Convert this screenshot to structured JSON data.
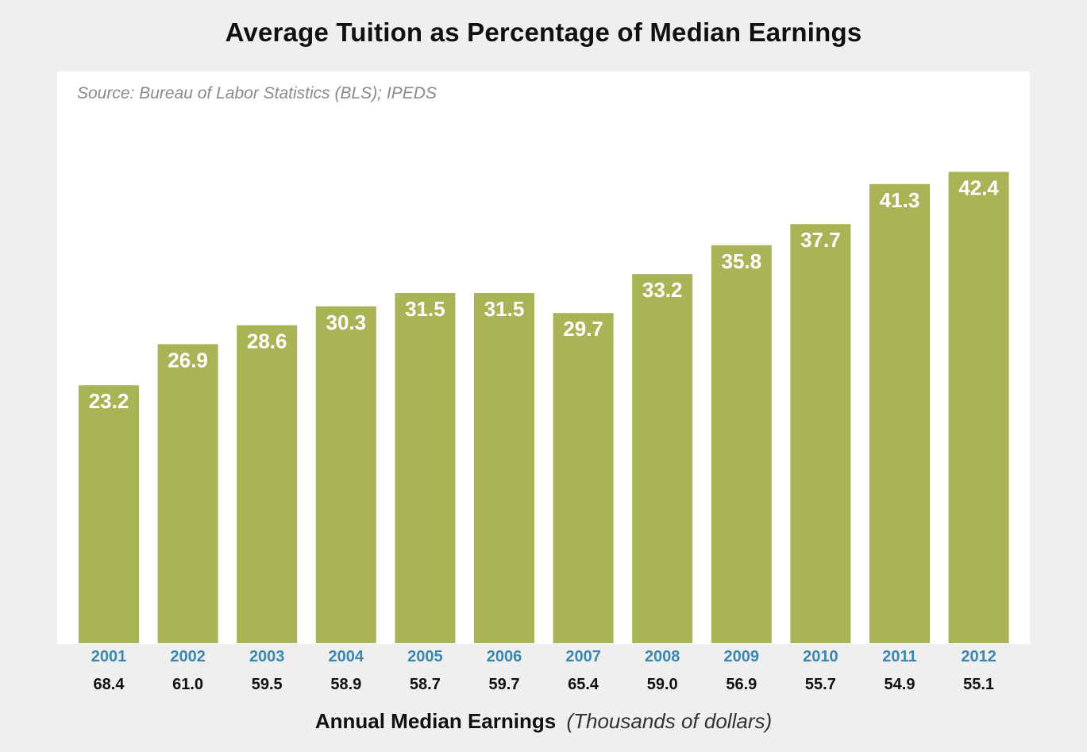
{
  "chart_data": {
    "type": "bar",
    "title": "Average Tuition as Percentage of Median Earnings",
    "source": "Source: Bureau of Labor Statistics (BLS); IPEDS",
    "categories": [
      "2001",
      "2002",
      "2003",
      "2004",
      "2005",
      "2006",
      "2007",
      "2008",
      "2009",
      "2010",
      "2011",
      "2012"
    ],
    "values": [
      23.2,
      26.9,
      28.6,
      30.3,
      31.5,
      31.5,
      29.7,
      33.2,
      35.8,
      37.7,
      41.3,
      42.4
    ],
    "value_labels": [
      "23.2",
      "26.9",
      "28.6",
      "30.3",
      "31.5",
      "31.5",
      "29.7",
      "33.2",
      "35.8",
      "37.7",
      "41.3",
      "42.4"
    ],
    "median_earnings": [
      "68.4",
      "61.0",
      "59.5",
      "58.9",
      "58.7",
      "59.7",
      "65.4",
      "59.0",
      "56.9",
      "55.7",
      "54.9",
      "55.1"
    ],
    "xlabel": "Annual Median Earnings",
    "xlabel_unit": "(Thousands of dollars)",
    "ylabel": "",
    "ylim": [
      0,
      45
    ],
    "grid": false,
    "legend": "none",
    "colors": {
      "bar": "#aab457",
      "bar_label": "#ffffff",
      "year_label": "#3a87b0",
      "earnings_label": "#111111",
      "panel": "#ffffff",
      "background": "#efefef"
    }
  }
}
